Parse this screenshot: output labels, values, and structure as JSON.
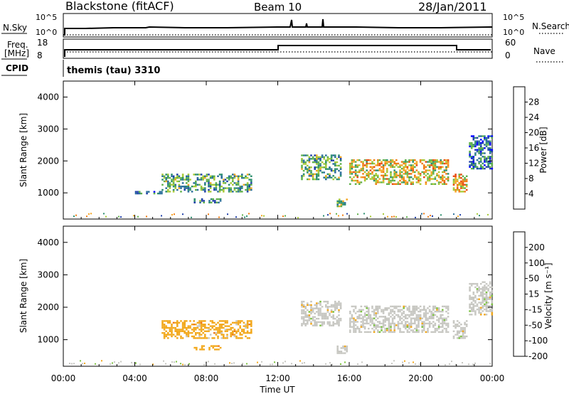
{
  "header": {
    "station": "Blackstone (fitACF)",
    "beam": "Beam 10",
    "date": "28/Jan/2011"
  },
  "panels": {
    "nsky": {
      "label": "N.Sky",
      "tick_top": "10^5",
      "tick_bottom": "10^0",
      "right_label": "N.Search",
      "right_top": "10^5",
      "right_bottom": "10^0"
    },
    "freq": {
      "label_line1": "Freq.",
      "label_line2": "[MHz]",
      "tick_top": "18",
      "tick_bottom": "8",
      "right_label": "Nave",
      "right_top": "60",
      "right_bottom": "0"
    },
    "cpid": {
      "label": "CPID",
      "text": "themis (tau) 3310"
    }
  },
  "colors": {
    "power_scale": [
      "#0000ff",
      "#1e3fa8",
      "#2a6e9a",
      "#2d8f6e",
      "#5fb04a",
      "#a6c934",
      "#f5a623",
      "#f07c12",
      "#e84a10",
      "#e01010"
    ],
    "velocity_scale": [
      "#1f2fb5",
      "#2d4ca6",
      "#2f8f4a",
      "#7cc240",
      "#c7c7c2",
      "#f2a81c",
      "#f07818",
      "#ea4012",
      "#e01010"
    ]
  },
  "chart_data": [
    {
      "type": "heatmap",
      "title": "",
      "xlabel": "",
      "ylabel": "Slant Range [km]",
      "x_ticks": [
        "00:00",
        "04:00",
        "08:00",
        "12:00",
        "16:00",
        "20:00",
        "00:00"
      ],
      "y_ticks": [
        1000,
        2000,
        3000,
        4000
      ],
      "xlim_hours": [
        0,
        24
      ],
      "ylim_km": [
        180,
        4500
      ],
      "colorbar": {
        "label": "Power [dB]",
        "ticks": [
          "4",
          "8",
          "12",
          "16",
          "20",
          "24",
          "28"
        ],
        "range": [
          0,
          30
        ]
      },
      "echo_regions": [
        {
          "t_start": 5.5,
          "t_end": 10.5,
          "r_start": 1050,
          "r_end": 1600,
          "value_dB": 12
        },
        {
          "t_start": 3.8,
          "t_end": 5.5,
          "r_start": 980,
          "r_end": 1060,
          "value_dB": 8
        },
        {
          "t_start": 7.3,
          "t_end": 8.8,
          "r_start": 680,
          "r_end": 830,
          "value_dB": 10
        },
        {
          "t_start": 13.3,
          "t_end": 15.5,
          "r_start": 1450,
          "r_end": 2200,
          "value_dB": 12
        },
        {
          "t_start": 15.3,
          "t_end": 15.9,
          "r_start": 550,
          "r_end": 820,
          "value_dB": 14
        },
        {
          "t_start": 16.0,
          "t_end": 21.5,
          "r_start": 1250,
          "r_end": 2050,
          "value_dB": 18
        },
        {
          "t_start": 21.8,
          "t_end": 22.6,
          "r_start": 1050,
          "r_end": 1600,
          "value_dB": 20
        },
        {
          "t_start": 22.7,
          "t_end": 24.0,
          "r_start": 1750,
          "r_end": 2800,
          "value_dB": 8
        }
      ]
    },
    {
      "type": "heatmap",
      "title": "",
      "xlabel": "Time UT",
      "ylabel": "Slant Range [km]",
      "x_ticks": [
        "00:00",
        "04:00",
        "08:00",
        "12:00",
        "16:00",
        "20:00",
        "00:00"
      ],
      "y_ticks": [
        1000,
        2000,
        3000,
        4000
      ],
      "xlim_hours": [
        0,
        24
      ],
      "ylim_km": [
        180,
        4500
      ],
      "colorbar": {
        "label": "Velocity [m s⁻¹]",
        "ticks": [
          "200",
          "100",
          "50",
          "15",
          "-15",
          "-50",
          "-100",
          "-200"
        ],
        "range": [
          -250,
          250
        ]
      },
      "echo_regions": [
        {
          "t_start": 5.5,
          "t_end": 10.5,
          "r_start": 1050,
          "r_end": 1600,
          "value_ms": -40
        },
        {
          "t_start": 7.3,
          "t_end": 8.8,
          "r_start": 680,
          "r_end": 830,
          "value_ms": -40
        },
        {
          "t_start": 13.3,
          "t_end": 15.5,
          "r_start": 1450,
          "r_end": 2200,
          "value_ms": 0
        },
        {
          "t_start": 15.3,
          "t_end": 15.9,
          "r_start": 550,
          "r_end": 820,
          "value_ms": 0
        },
        {
          "t_start": 16.0,
          "t_end": 21.5,
          "r_start": 1250,
          "r_end": 2050,
          "value_ms": 0
        },
        {
          "t_start": 21.8,
          "t_end": 22.6,
          "r_start": 1050,
          "r_end": 1600,
          "value_ms": 0
        },
        {
          "t_start": 22.7,
          "t_end": 24.0,
          "r_start": 1750,
          "r_end": 2800,
          "value_ms": 0
        }
      ]
    }
  ]
}
